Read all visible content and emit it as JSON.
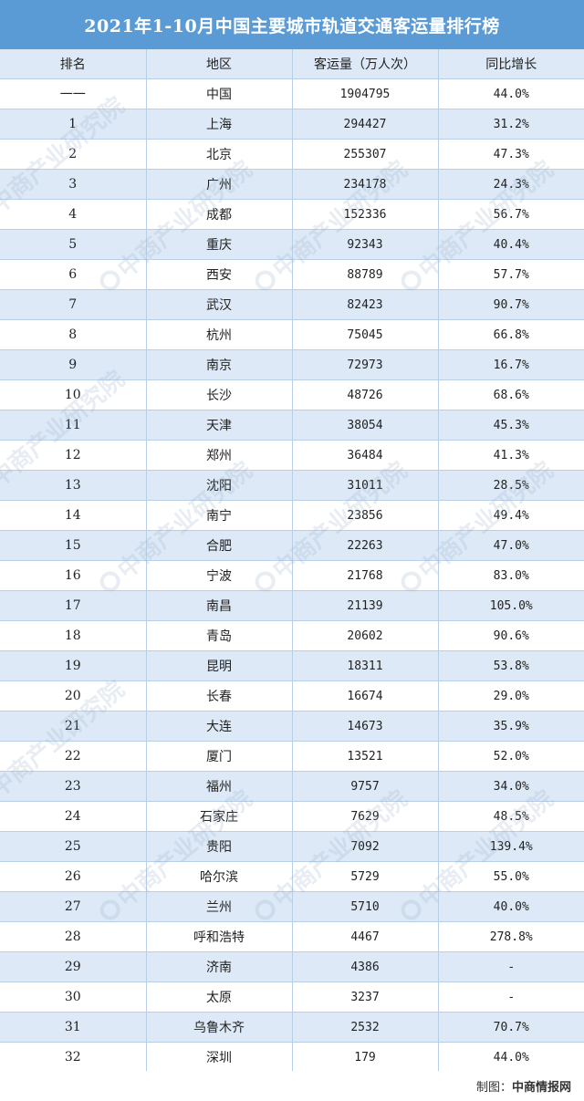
{
  "title": "2021年1-10月中国主要城市轨道交通客运量排行榜",
  "columns": [
    "排名",
    "地区",
    "客运量（万人次）",
    "同比增长"
  ],
  "rows": [
    [
      "一一",
      "中国",
      "1904795",
      "44.0%"
    ],
    [
      "1",
      "上海",
      "294427",
      "31.2%"
    ],
    [
      "2",
      "北京",
      "255307",
      "47.3%"
    ],
    [
      "3",
      "广州",
      "234178",
      "24.3%"
    ],
    [
      "4",
      "成都",
      "152336",
      "56.7%"
    ],
    [
      "5",
      "重庆",
      "92343",
      "40.4%"
    ],
    [
      "6",
      "西安",
      "88789",
      "57.7%"
    ],
    [
      "7",
      "武汉",
      "82423",
      "90.7%"
    ],
    [
      "8",
      "杭州",
      "75045",
      "66.8%"
    ],
    [
      "9",
      "南京",
      "72973",
      "16.7%"
    ],
    [
      "10",
      "长沙",
      "48726",
      "68.6%"
    ],
    [
      "11",
      "天津",
      "38054",
      "45.3%"
    ],
    [
      "12",
      "郑州",
      "36484",
      "41.3%"
    ],
    [
      "13",
      "沈阳",
      "31011",
      "28.5%"
    ],
    [
      "14",
      "南宁",
      "23856",
      "49.4%"
    ],
    [
      "15",
      "合肥",
      "22263",
      "47.0%"
    ],
    [
      "16",
      "宁波",
      "21768",
      "83.0%"
    ],
    [
      "17",
      "南昌",
      "21139",
      "105.0%"
    ],
    [
      "18",
      "青岛",
      "20602",
      "90.6%"
    ],
    [
      "19",
      "昆明",
      "18311",
      "53.8%"
    ],
    [
      "20",
      "长春",
      "16674",
      "29.0%"
    ],
    [
      "21",
      "大连",
      "14673",
      "35.9%"
    ],
    [
      "22",
      "厦门",
      "13521",
      "52.0%"
    ],
    [
      "23",
      "福州",
      "9757",
      "34.0%"
    ],
    [
      "24",
      "石家庄",
      "7629",
      "48.5%"
    ],
    [
      "25",
      "贵阳",
      "7092",
      "139.4%"
    ],
    [
      "26",
      "哈尔滨",
      "5729",
      "55.0%"
    ],
    [
      "27",
      "兰州",
      "5710",
      "40.0%"
    ],
    [
      "28",
      "呼和浩特",
      "4467",
      "278.8%"
    ],
    [
      "29",
      "济南",
      "4386",
      "-"
    ],
    [
      "30",
      "太原",
      "3237",
      "-"
    ],
    [
      "31",
      "乌鲁木齐",
      "2532",
      "70.7%"
    ],
    [
      "32",
      "深圳",
      "179",
      "44.0%"
    ]
  ],
  "footer": {
    "prefix": "制图：",
    "source": "中商情报网"
  },
  "watermark": "中商产业研究院",
  "colors": {
    "title_bg": "#5b9bd5",
    "row_alt": "#dde9f6",
    "border": "#b9cfe6"
  }
}
